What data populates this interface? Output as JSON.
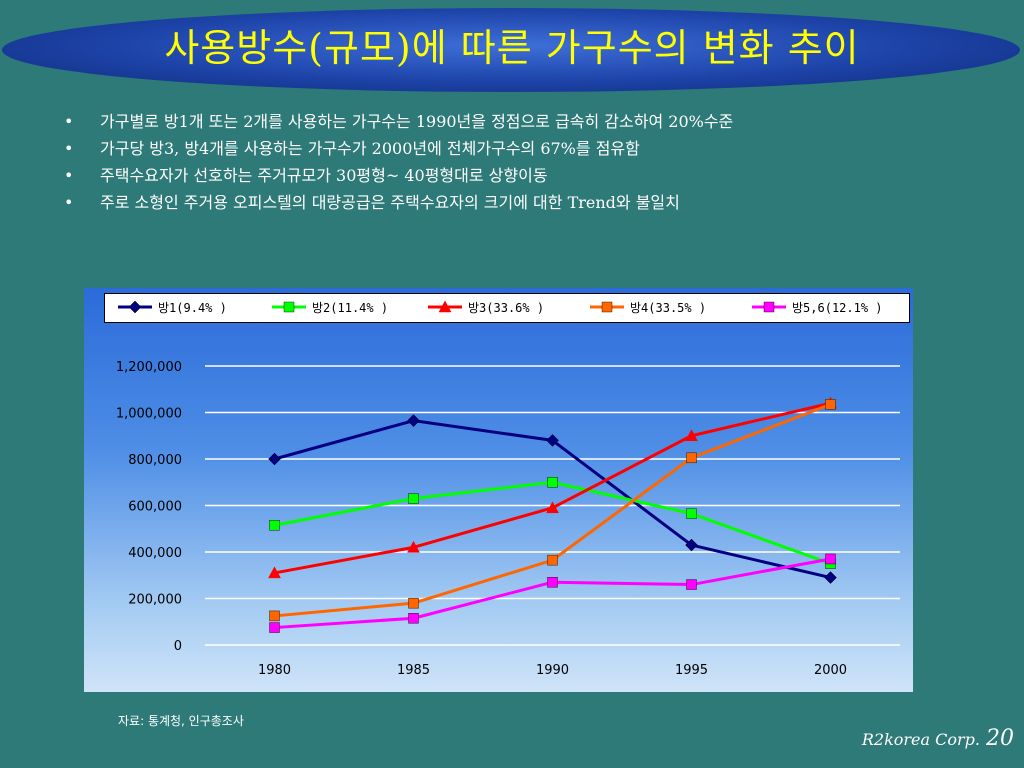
{
  "title": "사용방수(규모)에 따른 가구수의 변화 추이",
  "bullets": [
    "가구별로 방1개 또는 2개를 사용하는 가구수는 1990년을 정점으로 급속히 감소하여 20%수준",
    "가구당 방3, 방4개를 사용하는 가구수가 2000년에 전체가구수의 67%를 점유함",
    "주택수요자가 선호하는 주거규모가 30평형~ 40평형대로 상향이동",
    "주로 소형인 주거용 오피스텔의 대량공급은 주택수요자의 크기에 대한 Trend와 불일치"
  ],
  "bullet_symbol": "•",
  "source": "자료: 통계청, 인구총조사",
  "footer": {
    "corp": "R2korea Corp.",
    "page": "20"
  },
  "chart_data": {
    "type": "line",
    "x": [
      "1980",
      "1985",
      "1990",
      "1995",
      "2000"
    ],
    "ylim": [
      0,
      1200000
    ],
    "yticks": [
      "0",
      "200,000",
      "400,000",
      "600,000",
      "800,000",
      "1,000,000",
      "1,200,000"
    ],
    "ytick_values": [
      0,
      200000,
      400000,
      600000,
      800000,
      1000000,
      1200000
    ],
    "grid": true,
    "legend_position": "top",
    "series": [
      {
        "name": "방1(9.4% )",
        "color": "#000080",
        "marker": "diamond",
        "values": [
          800000,
          965000,
          880000,
          430000,
          290000
        ]
      },
      {
        "name": "방2(11.4% )",
        "color": "#00ff00",
        "marker": "square",
        "values": [
          515000,
          630000,
          700000,
          565000,
          350000
        ]
      },
      {
        "name": "방3(33.6% )",
        "color": "#ff0000",
        "marker": "triangle",
        "values": [
          310000,
          420000,
          590000,
          900000,
          1040000
        ]
      },
      {
        "name": "방4(33.5% )",
        "color": "#ff6600",
        "marker": "square",
        "values": [
          125000,
          180000,
          365000,
          805000,
          1035000
        ]
      },
      {
        "name": "방5,6(12.1% )",
        "color": "#ff00ff",
        "marker": "square",
        "values": [
          75000,
          115000,
          270000,
          260000,
          370000
        ]
      }
    ]
  }
}
